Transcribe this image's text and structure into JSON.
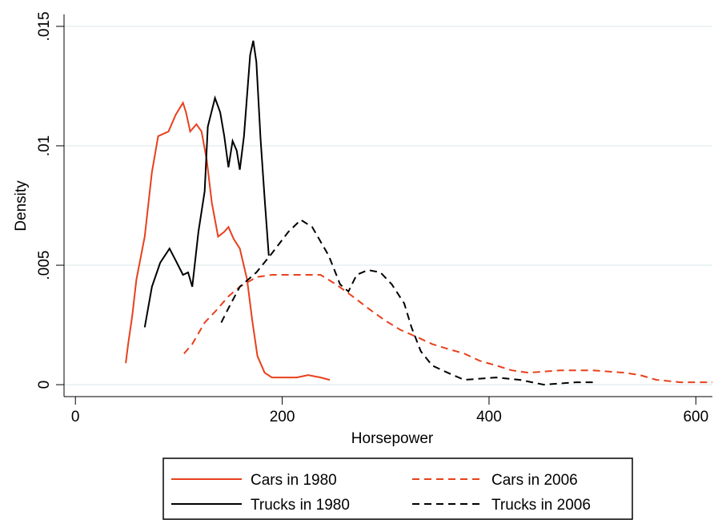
{
  "chart_data": {
    "type": "line",
    "xlabel": "Horsepower",
    "ylabel": "Density",
    "xlim": [
      -11,
      616
    ],
    "ylim": [
      -0.0005,
      0.0155
    ],
    "xticks": [
      0,
      200,
      400,
      600
    ],
    "yticks": [
      0,
      {
        "value": 0.005,
        "label": ".005"
      },
      {
        "value": 0.01,
        "label": ".01"
      },
      {
        "value": 0.015,
        "label": ".015"
      }
    ],
    "grid": true,
    "legend": "bottom",
    "series": [
      {
        "name": "Cars in 1980",
        "color": "#e8401c",
        "linestyle": "solid",
        "x": [
          48.7,
          51,
          55,
          59,
          67,
          74,
          80,
          90,
          97,
          104,
          107,
          111,
          117,
          122,
          127,
          132,
          138,
          144,
          148,
          153,
          159,
          166,
          171,
          176,
          183,
          190,
          198,
          214,
          225,
          237,
          246
        ],
        "values": [
          0.0009,
          0.0017,
          0.0029,
          0.0044,
          0.0062,
          0.0089,
          0.0104,
          0.0106,
          0.0113,
          0.0118,
          0.0114,
          0.0106,
          0.0109,
          0.0106,
          0.0094,
          0.0076,
          0.0062,
          0.0064,
          0.0066,
          0.0061,
          0.0057,
          0.0044,
          0.0027,
          0.0012,
          0.0005,
          0.0003,
          0.0003,
          0.0003,
          0.0004,
          0.0003,
          0.0002
        ]
      },
      {
        "name": "Cars in 2006",
        "color": "#e8401c",
        "linestyle": "dashed",
        "x": [
          105,
          113,
          125,
          136,
          148,
          159,
          175,
          190,
          221,
          237,
          252,
          268,
          283,
          299,
          314,
          330,
          345,
          360,
          376,
          391,
          407,
          422,
          438,
          469,
          500,
          531,
          546,
          562,
          585,
          616
        ],
        "values": [
          0.0013,
          0.0017,
          0.0026,
          0.0031,
          0.0037,
          0.0041,
          0.0045,
          0.0046,
          0.0046,
          0.0046,
          0.0042,
          0.0037,
          0.0032,
          0.0027,
          0.0023,
          0.002,
          0.0017,
          0.0015,
          0.0013,
          0.001,
          0.0008,
          0.0006,
          0.0005,
          0.0006,
          0.0006,
          0.0005,
          0.0004,
          0.0002,
          0.0001,
          0.0001
        ]
      },
      {
        "name": "Trucks in 1980",
        "color": "#000000",
        "linestyle": "solid",
        "x": [
          67,
          74,
          82,
          91,
          97,
          104,
          109,
          113,
          119,
          125,
          128,
          135,
          140,
          144,
          148,
          152,
          156,
          159,
          163,
          169,
          172,
          175,
          179,
          183,
          187
        ],
        "values": [
          0.0024,
          0.0041,
          0.0051,
          0.0057,
          0.0052,
          0.0046,
          0.0047,
          0.0041,
          0.0064,
          0.0081,
          0.0108,
          0.012,
          0.0114,
          0.0104,
          0.0091,
          0.0102,
          0.0098,
          0.009,
          0.0104,
          0.0138,
          0.0144,
          0.0135,
          0.0103,
          0.0078,
          0.0054
        ]
      },
      {
        "name": "Trucks in 2006",
        "color": "#000000",
        "linestyle": "dashed",
        "x": [
          141,
          148,
          159,
          175,
          190,
          206,
          218,
          229,
          245,
          256,
          264,
          272,
          283,
          295,
          306,
          318,
          325,
          334,
          345,
          360,
          376,
          407,
          430,
          453,
          484,
          504
        ],
        "values": [
          0.0026,
          0.0032,
          0.0041,
          0.0047,
          0.0055,
          0.0064,
          0.0069,
          0.0066,
          0.0054,
          0.0042,
          0.0039,
          0.0046,
          0.0048,
          0.0047,
          0.0042,
          0.0034,
          0.0024,
          0.0014,
          0.0008,
          0.0005,
          0.0002,
          0.0003,
          0.0002,
          0,
          0.0001,
          0.0001
        ]
      }
    ]
  }
}
